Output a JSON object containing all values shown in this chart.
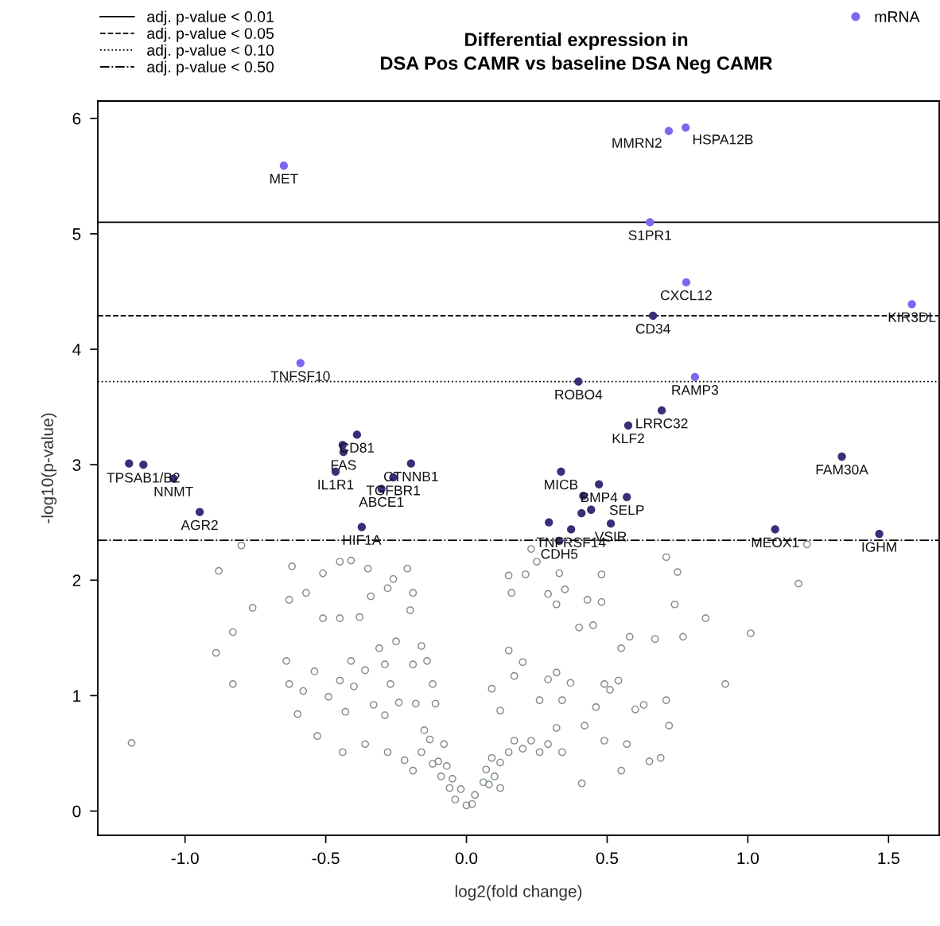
{
  "chart_data": {
    "type": "scatter",
    "title": "Differential expression in\nDSA Pos CAMR vs baseline DSA Neg CAMR",
    "xlabel": "log2(fold change)",
    "ylabel": "-log10(p-value)",
    "xlim": [
      -1.31,
      1.68
    ],
    "ylim": [
      -0.21,
      6.15
    ],
    "xticks": [
      {
        "value": -1.0,
        "label": "-1.0"
      },
      {
        "value": -0.5,
        "label": "-0.5"
      },
      {
        "value": 0.0,
        "label": "0.0"
      },
      {
        "value": 0.5,
        "label": "0.5"
      },
      {
        "value": 1.0,
        "label": "1.0"
      },
      {
        "value": 1.5,
        "label": "1.5"
      }
    ],
    "yticks": [
      0,
      1,
      2,
      3,
      4,
      5,
      6
    ],
    "grid": false,
    "legend": "top right",
    "series": [
      {
        "color": "#7f8a86",
        "marker": "circle",
        "x": [
          -0.8,
          -0.88,
          -0.76,
          -0.83,
          -0.89,
          -0.83,
          -1.19,
          -0.62,
          -0.63,
          -0.57,
          -0.51,
          -0.51,
          -0.45,
          -0.41,
          -0.45,
          -0.38,
          -0.35,
          -0.28,
          -0.34,
          -0.26,
          -0.21,
          -0.19,
          -0.2,
          -0.64,
          -0.63,
          -0.58,
          -0.54,
          -0.6,
          -0.49,
          -0.53,
          -0.44,
          -0.43,
          -0.45,
          -0.41,
          -0.4,
          -0.36,
          -0.36,
          -0.33,
          -0.31,
          -0.29,
          -0.25,
          -0.19,
          -0.27,
          -0.29,
          -0.24,
          -0.16,
          -0.18,
          -0.14,
          -0.12,
          -0.11,
          -0.15,
          -0.28,
          -0.22,
          -0.19,
          -0.16,
          -0.13,
          -0.1,
          -0.07,
          -0.05,
          -0.02,
          0.0,
          0.02,
          0.03,
          0.06,
          0.07,
          0.09,
          0.12,
          0.15,
          0.17,
          0.2,
          0.23,
          0.26,
          0.29,
          0.32,
          0.34,
          0.09,
          0.12,
          0.15,
          0.17,
          0.2,
          0.26,
          0.29,
          0.32,
          0.34,
          0.37,
          0.42,
          0.46,
          0.49,
          0.51,
          0.54,
          0.6,
          0.63,
          0.15,
          0.21,
          0.25,
          0.29,
          0.32,
          0.35,
          0.4,
          0.43,
          0.48,
          0.48,
          0.45,
          0.55,
          0.58,
          0.67,
          0.71,
          0.71,
          0.75,
          0.77,
          0.74,
          0.85,
          0.92,
          1.01,
          1.18,
          1.21,
          0.55,
          0.65,
          0.69,
          0.49,
          0.57,
          0.41,
          0.72,
          0.33,
          0.23,
          0.16,
          -0.08,
          -0.04,
          -0.06,
          0.08,
          -0.09,
          0.1,
          -0.12,
          0.12
        ],
        "values": [
          2.3,
          2.08,
          1.76,
          1.55,
          1.37,
          1.1,
          0.59,
          2.12,
          1.83,
          1.89,
          2.06,
          1.67,
          2.16,
          2.17,
          1.67,
          1.68,
          2.1,
          1.93,
          1.86,
          2.01,
          2.1,
          1.89,
          1.74,
          1.3,
          1.1,
          1.04,
          1.21,
          0.84,
          0.99,
          0.65,
          0.51,
          0.86,
          1.13,
          1.3,
          1.08,
          1.22,
          0.58,
          0.92,
          1.41,
          1.27,
          1.47,
          1.27,
          1.1,
          0.83,
          0.94,
          1.43,
          0.93,
          1.3,
          1.1,
          0.93,
          0.7,
          0.51,
          0.44,
          0.35,
          0.51,
          0.62,
          0.43,
          0.39,
          0.28,
          0.19,
          0.05,
          0.06,
          0.14,
          0.25,
          0.36,
          0.46,
          0.42,
          0.51,
          0.61,
          0.54,
          0.61,
          0.51,
          0.58,
          0.72,
          0.51,
          1.06,
          0.87,
          1.39,
          1.17,
          1.29,
          0.96,
          1.14,
          1.2,
          0.96,
          1.11,
          0.74,
          0.9,
          1.1,
          1.05,
          1.13,
          0.88,
          0.92,
          2.04,
          2.05,
          2.16,
          1.88,
          1.79,
          1.92,
          1.59,
          1.83,
          2.05,
          1.81,
          1.61,
          1.41,
          1.51,
          1.49,
          2.2,
          0.96,
          2.07,
          1.51,
          1.79,
          1.67,
          1.1,
          1.54,
          1.97,
          2.31,
          0.35,
          0.43,
          0.46,
          0.61,
          0.58,
          0.24,
          0.74,
          2.06,
          2.27,
          1.89,
          0.58,
          0.1,
          0.2,
          0.23,
          0.3,
          0.3,
          0.41,
          0.2
        ]
      },
      {
        "color": "#3a2e78",
        "marker": "circle",
        "x": [
          0.663,
          0.398,
          0.694,
          0.575,
          1.334,
          -1.199,
          -1.148,
          -1.041,
          -0.948,
          -0.389,
          -0.44,
          -0.437,
          -0.465,
          -0.197,
          -0.26,
          -0.302,
          -0.372,
          0.336,
          0.471,
          0.57,
          0.513,
          0.293,
          0.372,
          0.33,
          1.097,
          1.467,
          0.415,
          0.443,
          0.409
        ],
        "values": [
          4.29,
          3.72,
          3.47,
          3.34,
          3.07,
          3.01,
          3.0,
          2.88,
          2.59,
          3.26,
          3.17,
          3.11,
          2.94,
          3.01,
          2.89,
          2.79,
          2.46,
          2.94,
          2.83,
          2.72,
          2.49,
          2.5,
          2.44,
          2.34,
          2.44,
          2.4,
          2.73,
          2.61,
          2.58
        ]
      },
      {
        "name": "mRNA",
        "color": "#7b68ee",
        "marker": "circle",
        "x": [
          -0.649,
          0.779,
          0.719,
          0.652,
          0.781,
          1.583,
          -0.59,
          0.812
        ],
        "values": [
          5.59,
          5.92,
          5.89,
          5.1,
          4.58,
          4.39,
          3.88,
          3.76
        ]
      }
    ],
    "ref_lines": [
      {
        "axis": "y",
        "value": 5.1,
        "label": "adj. p-value < 0.01",
        "line_style": "solid",
        "color": "#000000"
      },
      {
        "axis": "y",
        "value": 4.29,
        "label": "adj. p-value < 0.05",
        "line_style": "dashed",
        "color": "#000000"
      },
      {
        "axis": "y",
        "value": 3.72,
        "label": "adj. p-value < 0.10",
        "line_style": "dotted",
        "color": "#000000"
      },
      {
        "axis": "y",
        "value": 2.345,
        "label": "adj. p-value < 0.50",
        "line_style": "dashdot",
        "color": "#000000"
      }
    ],
    "annotations": [
      {
        "text": "MET",
        "x": -0.649,
        "y": 5.59
      },
      {
        "text": "HSPA12B",
        "x": 0.779,
        "y": 5.92
      },
      {
        "text": "MMRN2",
        "x": 0.719,
        "y": 5.89
      },
      {
        "text": "S1PR1",
        "x": 0.652,
        "y": 5.1
      },
      {
        "text": "CXCL12",
        "x": 0.781,
        "y": 4.58
      },
      {
        "text": "KIR3DL",
        "x": 1.583,
        "y": 4.39
      },
      {
        "text": "CD34",
        "x": 0.663,
        "y": 4.29
      },
      {
        "text": "TNFSF10",
        "x": -0.59,
        "y": 3.88
      },
      {
        "text": "ROBO4",
        "x": 0.398,
        "y": 3.72
      },
      {
        "text": "RAMP3",
        "x": 0.812,
        "y": 3.76
      },
      {
        "text": "LRRC32",
        "x": 0.694,
        "y": 3.47
      },
      {
        "text": "KLF2",
        "x": 0.575,
        "y": 3.34
      },
      {
        "text": "FAM30A",
        "x": 1.334,
        "y": 3.07
      },
      {
        "text": "TPSAB1/B2",
        "x": -1.148,
        "y": 3.0
      },
      {
        "text": "NNMT",
        "x": -1.041,
        "y": 2.88
      },
      {
        "text": "AGR2",
        "x": -0.948,
        "y": 2.59
      },
      {
        "text": "CD81",
        "x": -0.389,
        "y": 3.26
      },
      {
        "text": "FAS",
        "x": -0.437,
        "y": 3.11
      },
      {
        "text": "IL1R1",
        "x": -0.465,
        "y": 2.94
      },
      {
        "text": "CTNNB1",
        "x": -0.197,
        "y": 3.01
      },
      {
        "text": "TGFBR1",
        "x": -0.26,
        "y": 2.89
      },
      {
        "text": "ABCE1",
        "x": -0.302,
        "y": 2.79
      },
      {
        "text": "HIF1A",
        "x": -0.372,
        "y": 2.46
      },
      {
        "text": "MICB",
        "x": 0.336,
        "y": 2.94
      },
      {
        "text": "BMP4",
        "x": 0.471,
        "y": 2.83
      },
      {
        "text": "SELP",
        "x": 0.57,
        "y": 2.72
      },
      {
        "text": "VSIR",
        "x": 0.513,
        "y": 2.49
      },
      {
        "text": "TNFRSF14",
        "x": 0.372,
        "y": 2.44
      },
      {
        "text": "CDH5",
        "x": 0.33,
        "y": 2.34
      },
      {
        "text": "MEOX1",
        "x": 1.097,
        "y": 2.44
      },
      {
        "text": "IGHM",
        "x": 1.467,
        "y": 2.4
      }
    ]
  }
}
